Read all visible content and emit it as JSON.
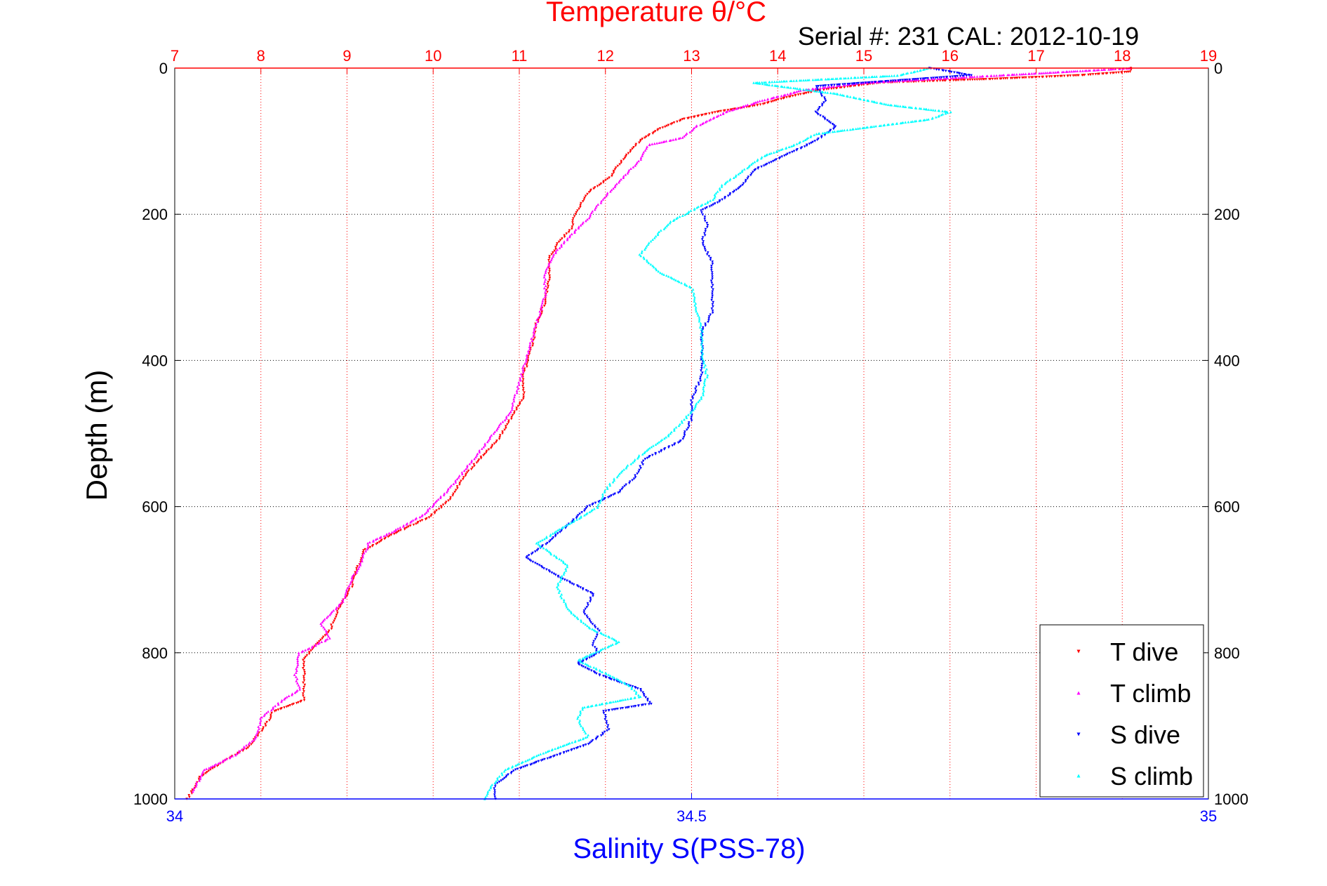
{
  "chart_data": {
    "type": "scatter",
    "title": "Temperature θ/°C",
    "subtitle": "Serial #: 231  CAL: 2012-10-19",
    "ylabel": "Depth (m)",
    "xlabel_bottom": "Salinity S(PSS-78)",
    "y_axis": {
      "range": [
        0,
        1000
      ],
      "reversed": true,
      "ticks": [
        0,
        200,
        400,
        600,
        800,
        1000
      ]
    },
    "top_axis": {
      "quantity": "Temperature",
      "range": [
        7,
        19
      ],
      "ticks": [
        7,
        8,
        9,
        10,
        11,
        12,
        13,
        14,
        15,
        16,
        17,
        18,
        19
      ],
      "color": "#ff0000"
    },
    "bottom_axis": {
      "quantity": "Salinity",
      "range": [
        34,
        35
      ],
      "tick_values": [
        34,
        34.5,
        35
      ],
      "tick_labels": [
        "34",
        "34.5",
        "35"
      ],
      "color": "#0000ff"
    },
    "grid": {
      "vertical": "top-axis ticks, red dotted",
      "horizontal": "depth ticks, black dotted"
    },
    "legend": {
      "position": "bottom-right"
    },
    "series": [
      {
        "name": "T dive",
        "axis": "top",
        "color": "#ff0000",
        "marker": "triangle-down",
        "points": [
          [
            18.1,
            0
          ],
          [
            18.1,
            5
          ],
          [
            17.5,
            10
          ],
          [
            16.5,
            15
          ],
          [
            15.2,
            20
          ],
          [
            14.5,
            30
          ],
          [
            14.1,
            40
          ],
          [
            13.8,
            50
          ],
          [
            13.3,
            60
          ],
          [
            12.9,
            70
          ],
          [
            12.6,
            85
          ],
          [
            12.4,
            100
          ],
          [
            12.2,
            125
          ],
          [
            12.05,
            150
          ],
          [
            11.8,
            170
          ],
          [
            11.65,
            200
          ],
          [
            11.6,
            220
          ],
          [
            11.45,
            240
          ],
          [
            11.35,
            260
          ],
          [
            11.35,
            290
          ],
          [
            11.3,
            320
          ],
          [
            11.2,
            350
          ],
          [
            11.15,
            380
          ],
          [
            11.05,
            420
          ],
          [
            11.05,
            450
          ],
          [
            10.9,
            480
          ],
          [
            10.75,
            510
          ],
          [
            10.5,
            540
          ],
          [
            10.35,
            560
          ],
          [
            10.2,
            590
          ],
          [
            9.95,
            615
          ],
          [
            9.5,
            640
          ],
          [
            9.2,
            660
          ],
          [
            9.1,
            690
          ],
          [
            9.05,
            710
          ],
          [
            8.9,
            740
          ],
          [
            8.8,
            770
          ],
          [
            8.6,
            795
          ],
          [
            8.5,
            810
          ],
          [
            8.5,
            835
          ],
          [
            8.5,
            865
          ],
          [
            8.15,
            880
          ],
          [
            8.05,
            900
          ],
          [
            7.85,
            930
          ],
          [
            7.55,
            950
          ],
          [
            7.3,
            970
          ],
          [
            7.2,
            990
          ],
          [
            7.15,
            1000
          ]
        ]
      },
      {
        "name": "T climb",
        "axis": "top",
        "color": "#ff00ff",
        "marker": "triangle-up",
        "points": [
          [
            18.1,
            0
          ],
          [
            15.0,
            20
          ],
          [
            14.3,
            30
          ],
          [
            13.8,
            45
          ],
          [
            13.4,
            60
          ],
          [
            13.05,
            80
          ],
          [
            12.9,
            95
          ],
          [
            12.5,
            105
          ],
          [
            12.4,
            125
          ],
          [
            12.2,
            150
          ],
          [
            12.0,
            175
          ],
          [
            11.8,
            205
          ],
          [
            11.55,
            235
          ],
          [
            11.4,
            255
          ],
          [
            11.3,
            280
          ],
          [
            11.3,
            310
          ],
          [
            11.2,
            350
          ],
          [
            11.1,
            390
          ],
          [
            11.0,
            430
          ],
          [
            10.9,
            470
          ],
          [
            10.7,
            500
          ],
          [
            10.5,
            530
          ],
          [
            10.3,
            560
          ],
          [
            10.15,
            580
          ],
          [
            9.9,
            610
          ],
          [
            9.6,
            630
          ],
          [
            9.25,
            650
          ],
          [
            9.15,
            680
          ],
          [
            9.05,
            700
          ],
          [
            8.95,
            730
          ],
          [
            8.7,
            760
          ],
          [
            8.8,
            780
          ],
          [
            8.45,
            800
          ],
          [
            8.4,
            830
          ],
          [
            8.45,
            850
          ],
          [
            8.25,
            865
          ],
          [
            8.0,
            890
          ],
          [
            7.95,
            915
          ],
          [
            7.7,
            940
          ],
          [
            7.35,
            960
          ],
          [
            7.2,
            990
          ]
        ]
      },
      {
        "name": "S dive",
        "axis": "bottom",
        "color": "#0000ff",
        "marker": "triangle-down",
        "points": [
          [
            34.73,
            0
          ],
          [
            34.77,
            10
          ],
          [
            34.62,
            25
          ],
          [
            34.63,
            45
          ],
          [
            34.62,
            60
          ],
          [
            34.64,
            80
          ],
          [
            34.62,
            100
          ],
          [
            34.59,
            120
          ],
          [
            34.56,
            140
          ],
          [
            34.55,
            160
          ],
          [
            34.53,
            180
          ],
          [
            34.51,
            195
          ],
          [
            34.515,
            215
          ],
          [
            34.51,
            240
          ],
          [
            34.52,
            265
          ],
          [
            34.52,
            300
          ],
          [
            34.52,
            335
          ],
          [
            34.51,
            360
          ],
          [
            34.51,
            390
          ],
          [
            34.51,
            420
          ],
          [
            34.5,
            455
          ],
          [
            34.5,
            480
          ],
          [
            34.49,
            510
          ],
          [
            34.455,
            535
          ],
          [
            34.445,
            560
          ],
          [
            34.43,
            580
          ],
          [
            34.4,
            600
          ],
          [
            34.385,
            620
          ],
          [
            34.36,
            650
          ],
          [
            34.34,
            670
          ],
          [
            34.37,
            695
          ],
          [
            34.405,
            720
          ],
          [
            34.395,
            745
          ],
          [
            34.41,
            770
          ],
          [
            34.405,
            790
          ],
          [
            34.41,
            800
          ],
          [
            34.39,
            815
          ],
          [
            34.41,
            830
          ],
          [
            34.45,
            850
          ],
          [
            34.46,
            870
          ],
          [
            34.415,
            880
          ],
          [
            34.42,
            905
          ],
          [
            34.4,
            925
          ],
          [
            34.37,
            940
          ],
          [
            34.33,
            960
          ],
          [
            34.31,
            980
          ],
          [
            34.31,
            1000
          ]
        ]
      },
      {
        "name": "S climb",
        "axis": "bottom",
        "color": "#00ffff",
        "marker": "triangle-up",
        "points": [
          [
            34.73,
            0
          ],
          [
            34.7,
            10
          ],
          [
            34.56,
            20
          ],
          [
            34.64,
            35
          ],
          [
            34.69,
            50
          ],
          [
            34.75,
            60
          ],
          [
            34.73,
            70
          ],
          [
            34.62,
            90
          ],
          [
            34.6,
            105
          ],
          [
            34.57,
            120
          ],
          [
            34.55,
            140
          ],
          [
            34.53,
            160
          ],
          [
            34.52,
            180
          ],
          [
            34.5,
            195
          ],
          [
            34.48,
            210
          ],
          [
            34.465,
            230
          ],
          [
            34.45,
            255
          ],
          [
            34.47,
            280
          ],
          [
            34.5,
            300
          ],
          [
            34.505,
            330
          ],
          [
            34.51,
            360
          ],
          [
            34.51,
            390
          ],
          [
            34.515,
            420
          ],
          [
            34.51,
            450
          ],
          [
            34.5,
            470
          ],
          [
            34.48,
            500
          ],
          [
            34.45,
            530
          ],
          [
            34.43,
            555
          ],
          [
            34.415,
            580
          ],
          [
            34.41,
            600
          ],
          [
            34.38,
            625
          ],
          [
            34.35,
            650
          ],
          [
            34.38,
            680
          ],
          [
            34.37,
            710
          ],
          [
            34.38,
            740
          ],
          [
            34.4,
            765
          ],
          [
            34.43,
            785
          ],
          [
            34.39,
            810
          ],
          [
            34.42,
            830
          ],
          [
            34.44,
            845
          ],
          [
            34.45,
            860
          ],
          [
            34.395,
            875
          ],
          [
            34.39,
            890
          ],
          [
            34.4,
            915
          ],
          [
            34.36,
            935
          ],
          [
            34.32,
            960
          ],
          [
            34.305,
            985
          ],
          [
            34.3,
            1000
          ]
        ]
      }
    ]
  }
}
